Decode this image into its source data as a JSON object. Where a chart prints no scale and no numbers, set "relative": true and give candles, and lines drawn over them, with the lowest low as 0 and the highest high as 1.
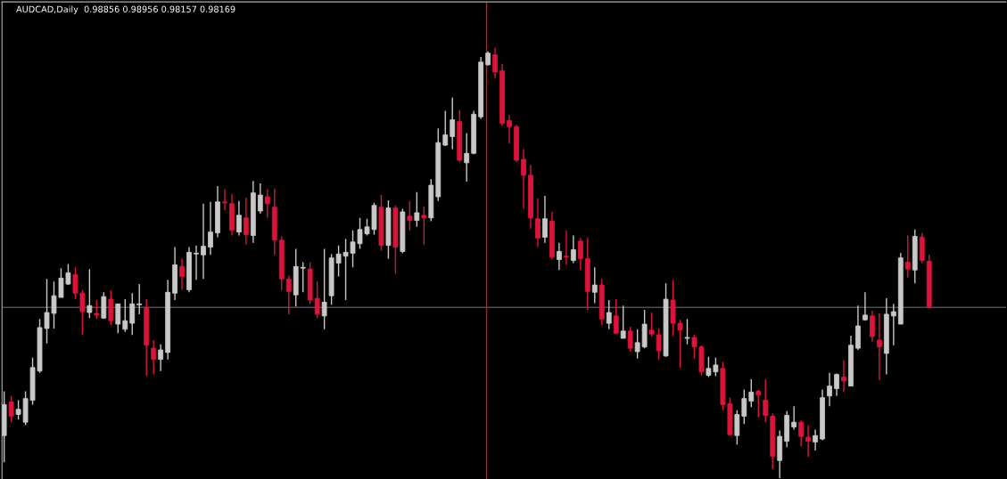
{
  "chart_data": {
    "type": "candlestick",
    "title": "AUDCAD,Daily  0.98856 0.98956 0.98157 0.98169",
    "relative": true,
    "categories": [
      null,
      null,
      null,
      null,
      null,
      null,
      null,
      null,
      null,
      null,
      null,
      null,
      null,
      null,
      null,
      null,
      null,
      null,
      null,
      null,
      null,
      null,
      null,
      null,
      null,
      null,
      null,
      null,
      null,
      null,
      null,
      null,
      null,
      null,
      null,
      null,
      null,
      null,
      null,
      null,
      null,
      null,
      null,
      null,
      null,
      null,
      null,
      null,
      null,
      null,
      null,
      null,
      null,
      null,
      null,
      null,
      null,
      null,
      null,
      null,
      null,
      null,
      null,
      null,
      null,
      null,
      null,
      null,
      null,
      null,
      null,
      null,
      null,
      null,
      null,
      null,
      null,
      null,
      null,
      null,
      null,
      null,
      null,
      null,
      null,
      null,
      null,
      null,
      null,
      null,
      null,
      null,
      null,
      null,
      null,
      null,
      null,
      null,
      null,
      null,
      null,
      null,
      null,
      null,
      null,
      null,
      null,
      null,
      null,
      null,
      null,
      null,
      null,
      null,
      null,
      null,
      null,
      null,
      null,
      null,
      null,
      null,
      null,
      null,
      null,
      null,
      null,
      null,
      null,
      null,
      null
    ],
    "colors": [
      "#c8c8c8",
      "#dc143c",
      "#c8c8c8",
      "#c8c8c8",
      "#c8c8c8",
      "#c8c8c8",
      "#c8c8c8",
      "#c8c8c8",
      "#c8c8c8",
      "#c8c8c8",
      "#dc143c",
      "#dc143c",
      "#c8c8c8",
      "#dc143c",
      "#c8c8c8",
      "#dc143c",
      "#c8c8c8",
      "#c8c8c8",
      "#c8c8c8",
      "#c8c8c8",
      "#dc143c",
      "#dc143c",
      "#c8c8c8",
      "#c8c8c8",
      "#c8c8c8",
      "#dc143c",
      "#c8c8c8",
      "#c8c8c8",
      "#c8c8c8",
      "#c8c8c8",
      "#c8c8c8",
      "#dc143c",
      "#dc143c",
      "#c8c8c8",
      "#dc143c",
      "#c8c8c8",
      "#c8c8c8",
      "#dc143c",
      "#dc143c",
      "#dc143c",
      "#dc143c",
      "#c8c8c8",
      "#c8c8c8",
      "#dc143c",
      "#dc143c",
      "#c8c8c8",
      "#c8c8c8",
      "#c8c8c8",
      "#c8c8c8",
      "#c8c8c8",
      "#c8c8c8",
      "#c8c8c8",
      "#c8c8c8",
      "#dc143c",
      "#c8c8c8",
      "#dc143c",
      "#c8c8c8",
      "#dc143c",
      "#c8c8c8",
      "#dc143c",
      "#c8c8c8",
      "#c8c8c8",
      "#c8c8c8",
      "#c8c8c8",
      "#dc143c",
      "#c8c8c8",
      "#c8c8c8",
      "#c8c8c8",
      "#c8c8c8",
      "#dc143c",
      "#dc143c",
      "#dc143c",
      "#dc143c",
      "#dc143c",
      "#dc143c",
      "#dc143c",
      "#c8c8c8",
      "#dc143c",
      "#c8c8c8",
      "#dc143c",
      "#c8c8c8",
      "#dc143c",
      "#dc143c",
      "#c8c8c8",
      "#dc143c",
      "#c8c8c8",
      "#dc143c",
      "#c8c8c8",
      "#dc143c",
      "#c8c8c8",
      "#c8c8c8",
      "#dc143c",
      "#dc143c",
      "#c8c8c8",
      "#dc143c",
      "#dc143c",
      "#c8c8c8",
      "#dc143c",
      "#dc143c",
      "#c8c8c8",
      "#c8c8c8",
      "#dc143c",
      "#dc143c",
      "#c8c8c8",
      "#c8c8c8",
      "#c8c8c8",
      "#dc143c",
      "#dc143c",
      "#dc143c",
      "#c8c8c8",
      "#c8c8c8",
      "#c8c8c8",
      "#dc143c",
      "#dc143c",
      "#c8c8c8",
      "#c8c8c8",
      "#c8c8c8",
      "#c8c8c8",
      "#dc143c",
      "#c8c8c8",
      "#c8c8c8",
      "#c8c8c8",
      "#dc143c",
      "#dc143c",
      "#c8c8c8",
      "#c8c8c8",
      "#c8c8c8",
      "#dc143c",
      "#c8c8c8",
      "#dc143c",
      "#dc143c"
    ],
    "ohlc": [
      [
        0.099,
        0.202,
        0.037,
        0.171
      ],
      [
        0.177,
        0.191,
        0.13,
        0.144
      ],
      [
        0.148,
        0.181,
        0.136,
        0.16
      ],
      [
        0.13,
        0.202,
        0.123,
        0.185
      ],
      [
        0.181,
        0.28,
        0.171,
        0.257
      ],
      [
        0.249,
        0.37,
        0.245,
        0.35
      ],
      [
        0.348,
        0.463,
        0.313,
        0.385
      ],
      [
        0.383,
        0.457,
        0.348,
        0.424
      ],
      [
        0.42,
        0.488,
        0.42,
        0.465
      ],
      [
        0.451,
        0.498,
        0.449,
        0.477
      ],
      [
        0.473,
        0.49,
        0.416,
        0.43
      ],
      [
        0.43,
        0.438,
        0.333,
        0.387
      ],
      [
        0.385,
        0.486,
        0.372,
        0.401
      ],
      [
        0.383,
        0.414,
        0.37,
        0.379
      ],
      [
        0.372,
        0.432,
        0.37,
        0.422
      ],
      [
        0.416,
        0.436,
        0.356,
        0.366
      ],
      [
        0.358,
        0.405,
        0.337,
        0.405
      ],
      [
        0.346,
        0.416,
        0.34,
        0.366
      ],
      [
        0.36,
        0.43,
        0.333,
        0.405
      ],
      [
        0.403,
        0.451,
        0.381,
        0.405
      ],
      [
        0.397,
        0.416,
        0.237,
        0.309
      ],
      [
        0.302,
        0.321,
        0.241,
        0.276
      ],
      [
        0.276,
        0.311,
        0.249,
        0.298
      ],
      [
        0.292,
        0.461,
        0.276,
        0.432
      ],
      [
        0.43,
        0.537,
        0.414,
        0.496
      ],
      [
        0.492,
        0.51,
        0.438,
        0.469
      ],
      [
        0.438,
        0.537,
        0.432,
        0.525
      ],
      [
        0.521,
        0.541,
        0.461,
        0.523
      ],
      [
        0.519,
        0.638,
        0.463,
        0.539
      ],
      [
        0.537,
        0.642,
        0.519,
        0.572
      ],
      [
        0.57,
        0.679,
        0.56,
        0.642
      ],
      [
        0.642,
        0.671,
        0.623,
        0.64
      ],
      [
        0.638,
        0.66,
        0.564,
        0.576
      ],
      [
        0.572,
        0.644,
        0.564,
        0.611
      ],
      [
        0.605,
        0.652,
        0.543,
        0.566
      ],
      [
        0.564,
        0.691,
        0.547,
        0.663
      ],
      [
        0.621,
        0.685,
        0.615,
        0.658
      ],
      [
        0.654,
        0.671,
        0.605,
        0.638
      ],
      [
        0.63,
        0.673,
        0.519,
        0.553
      ],
      [
        0.553,
        0.562,
        0.436,
        0.463
      ],
      [
        0.463,
        0.471,
        0.381,
        0.434
      ],
      [
        0.426,
        0.533,
        0.399,
        0.492
      ],
      [
        0.488,
        0.502,
        0.432,
        0.49
      ],
      [
        0.486,
        0.502,
        0.405,
        0.414
      ],
      [
        0.418,
        0.457,
        0.372,
        0.381
      ],
      [
        0.377,
        0.533,
        0.346,
        0.409
      ],
      [
        0.424,
        0.521,
        0.403,
        0.512
      ],
      [
        0.5,
        0.541,
        0.469,
        0.521
      ],
      [
        0.516,
        0.556,
        0.414,
        0.525
      ],
      [
        0.523,
        0.576,
        0.49,
        0.549
      ],
      [
        0.545,
        0.605,
        0.533,
        0.578
      ],
      [
        0.568,
        0.603,
        0.564,
        0.584
      ],
      [
        0.578,
        0.64,
        0.566,
        0.634
      ],
      [
        0.63,
        0.658,
        0.529,
        0.541
      ],
      [
        0.541,
        0.646,
        0.51,
        0.628
      ],
      [
        0.628,
        0.634,
        0.475,
        0.537
      ],
      [
        0.527,
        0.626,
        0.523,
        0.619
      ],
      [
        0.609,
        0.644,
        0.576,
        0.599
      ],
      [
        0.599,
        0.665,
        0.584,
        0.617
      ],
      [
        0.611,
        0.632,
        0.543,
        0.605
      ],
      [
        0.605,
        0.695,
        0.597,
        0.681
      ],
      [
        0.654,
        0.813,
        0.644,
        0.78
      ],
      [
        0.774,
        0.854,
        0.772,
        0.798
      ],
      [
        0.794,
        0.885,
        0.765,
        0.833
      ],
      [
        0.829,
        0.856,
        0.735,
        0.739
      ],
      [
        0.733,
        0.802,
        0.689,
        0.755
      ],
      [
        0.755,
        0.854,
        0.753,
        0.846
      ],
      [
        0.84,
        0.979,
        0.835,
        0.967
      ],
      [
        0.961,
        0.992,
        0.959,
        0.988
      ],
      [
        0.984,
        1.0,
        0.93,
        0.944
      ],
      [
        0.947,
        0.963,
        0.819,
        0.825
      ],
      [
        0.831,
        0.844,
        0.778,
        0.817
      ],
      [
        0.817,
        0.821,
        0.735,
        0.739
      ],
      [
        0.741,
        0.765,
        0.626,
        0.704
      ],
      [
        0.704,
        0.728,
        0.58,
        0.605
      ],
      [
        0.603,
        0.65,
        0.537,
        0.558
      ],
      [
        0.56,
        0.656,
        0.547,
        0.603
      ],
      [
        0.597,
        0.619,
        0.508,
        0.514
      ],
      [
        0.508,
        0.547,
        0.484,
        0.527
      ],
      [
        0.516,
        0.576,
        0.496,
        0.514
      ],
      [
        0.506,
        0.564,
        0.5,
        0.531
      ],
      [
        0.551,
        0.558,
        0.484,
        0.51
      ],
      [
        0.51,
        0.56,
        0.391,
        0.434
      ],
      [
        0.432,
        0.49,
        0.407,
        0.449
      ],
      [
        0.449,
        0.463,
        0.356,
        0.37
      ],
      [
        0.36,
        0.414,
        0.346,
        0.385
      ],
      [
        0.377,
        0.416,
        0.335,
        0.337
      ],
      [
        0.325,
        0.401,
        0.325,
        0.342
      ],
      [
        0.342,
        0.352,
        0.294,
        0.302
      ],
      [
        0.294,
        0.346,
        0.278,
        0.315
      ],
      [
        0.305,
        0.391,
        0.302,
        0.358
      ],
      [
        0.344,
        0.385,
        0.329,
        0.335
      ],
      [
        0.333,
        0.348,
        0.276,
        0.296
      ],
      [
        0.284,
        0.453,
        0.282,
        0.416
      ],
      [
        0.414,
        0.461,
        0.331,
        0.36
      ],
      [
        0.36,
        0.368,
        0.257,
        0.344
      ],
      [
        0.325,
        0.37,
        0.311,
        0.327
      ],
      [
        0.327,
        0.333,
        0.278,
        0.305
      ],
      [
        0.305,
        0.309,
        0.239,
        0.247
      ],
      [
        0.239,
        0.282,
        0.235,
        0.255
      ],
      [
        0.247,
        0.28,
        0.237,
        0.263
      ],
      [
        0.255,
        0.27,
        0.158,
        0.171
      ],
      [
        0.173,
        0.187,
        0.099,
        0.101
      ],
      [
        0.099,
        0.158,
        0.078,
        0.148
      ],
      [
        0.144,
        0.206,
        0.126,
        0.185
      ],
      [
        0.179,
        0.23,
        0.165,
        0.2
      ],
      [
        0.202,
        0.206,
        0.142,
        0.193
      ],
      [
        0.181,
        0.23,
        0.13,
        0.146
      ],
      [
        0.144,
        0.15,
        0.021,
        0.051
      ],
      [
        0.041,
        0.111,
        0.0,
        0.097
      ],
      [
        0.086,
        0.156,
        0.072,
        0.146
      ],
      [
        0.119,
        0.167,
        0.113,
        0.13
      ],
      [
        0.13,
        0.134,
        0.074,
        0.097
      ],
      [
        0.095,
        0.123,
        0.049,
        0.086
      ],
      [
        0.084,
        0.113,
        0.064,
        0.099
      ],
      [
        0.091,
        0.206,
        0.088,
        0.187
      ],
      [
        0.191,
        0.245,
        0.167,
        0.214
      ],
      [
        0.208,
        0.243,
        0.191,
        0.241
      ],
      [
        0.235,
        0.274,
        0.2,
        0.226
      ],
      [
        0.214,
        0.331,
        0.214,
        0.309
      ],
      [
        0.302,
        0.401,
        0.298,
        0.354
      ],
      [
        0.368,
        0.432,
        0.366,
        0.379
      ],
      [
        0.377,
        0.389,
        0.317,
        0.329
      ],
      [
        0.321,
        0.383,
        0.228,
        0.305
      ],
      [
        0.29,
        0.418,
        0.241,
        0.381
      ],
      [
        0.377,
        0.405,
        0.309,
        0.387
      ],
      [
        0.358,
        0.523,
        0.358,
        0.512
      ],
      [
        0.502,
        0.564,
        0.467,
        0.486
      ],
      [
        0.484,
        0.578,
        0.453,
        0.562
      ],
      [
        0.56,
        0.57,
        0.5,
        0.506
      ],
      [
        0.504,
        0.519,
        0.395,
        0.397
      ]
    ],
    "ref_lines": [
      {
        "axis": "y",
        "value": 0.397,
        "color": "#4a4a60"
      }
    ]
  }
}
